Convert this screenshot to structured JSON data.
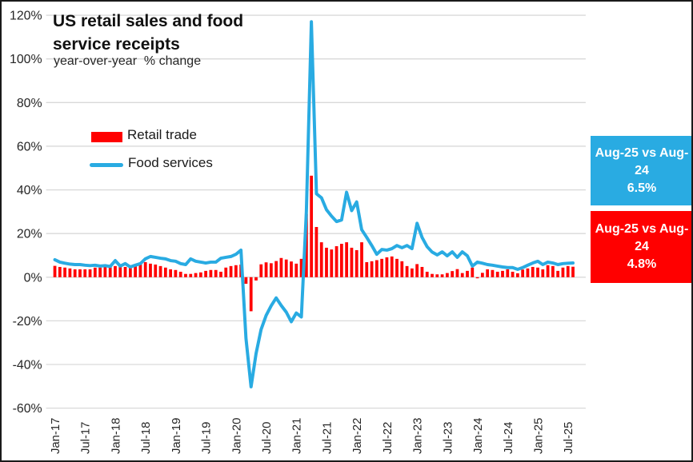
{
  "header": {
    "title_line1": "US retail sales and food",
    "title_line2": "service receipts",
    "subtitle": "year-over-year  % change"
  },
  "legend": {
    "retail_label": "Retail trade",
    "food_label": "Food services"
  },
  "callouts": {
    "food": {
      "line1": "Aug-25 vs Aug-",
      "line2": "24",
      "value": "6.5%"
    },
    "retail": {
      "line1": "Aug-25 vs Aug-",
      "line2": "24",
      "value": "4.8%"
    }
  },
  "colors": {
    "retail": "#FF0000",
    "food": "#29ABE2",
    "gridline": "#D9D9D9",
    "axis_text": "#262626"
  },
  "chart_data": {
    "type": "combo",
    "title": "US retail sales and food service receipts",
    "subtitle": "year-over-year % change",
    "ylim": [
      -60,
      120
    ],
    "y_tick_step": 20,
    "y_tick_labels": [
      "120%",
      "100%",
      "80%",
      "60%",
      "40%",
      "20%",
      "0%",
      "-20%",
      "-40%",
      "-60%"
    ],
    "grid": "horizontal",
    "legend_position": "upper-left-inside",
    "x_tick_labels": [
      "Jan-17",
      "Jul-17",
      "Jan-18",
      "Jul-18",
      "Jan-19",
      "Jul-19",
      "Jan-20",
      "Jul-20",
      "Jan-21",
      "Jul-21",
      "Jan-22",
      "Jul-22",
      "Jan-23",
      "Jul-23",
      "Jan-24",
      "Jul-24",
      "Jan-25",
      "Jul-25"
    ],
    "x": [
      "Jan-17",
      "Feb-17",
      "Mar-17",
      "Apr-17",
      "May-17",
      "Jun-17",
      "Jul-17",
      "Aug-17",
      "Sep-17",
      "Oct-17",
      "Nov-17",
      "Dec-17",
      "Jan-18",
      "Feb-18",
      "Mar-18",
      "Apr-18",
      "May-18",
      "Jun-18",
      "Jul-18",
      "Aug-18",
      "Sep-18",
      "Oct-18",
      "Nov-18",
      "Dec-18",
      "Jan-19",
      "Feb-19",
      "Mar-19",
      "Apr-19",
      "May-19",
      "Jun-19",
      "Jul-19",
      "Aug-19",
      "Sep-19",
      "Oct-19",
      "Nov-19",
      "Dec-19",
      "Jan-20",
      "Feb-20",
      "Mar-20",
      "Apr-20",
      "May-20",
      "Jun-20",
      "Jul-20",
      "Aug-20",
      "Sep-20",
      "Oct-20",
      "Nov-20",
      "Dec-20",
      "Jan-21",
      "Feb-21",
      "Mar-21",
      "Apr-21",
      "May-21",
      "Jun-21",
      "Jul-21",
      "Aug-21",
      "Sep-21",
      "Oct-21",
      "Nov-21",
      "Dec-21",
      "Jan-22",
      "Feb-22",
      "Mar-22",
      "Apr-22",
      "May-22",
      "Jun-22",
      "Jul-22",
      "Aug-22",
      "Sep-22",
      "Oct-22",
      "Nov-22",
      "Dec-22",
      "Jan-23",
      "Feb-23",
      "Mar-23",
      "Apr-23",
      "May-23",
      "Jun-23",
      "Jul-23",
      "Aug-23",
      "Sep-23",
      "Oct-23",
      "Nov-23",
      "Dec-23",
      "Jan-24",
      "Feb-24",
      "Mar-24",
      "Apr-24",
      "May-24",
      "Jun-24",
      "Jul-24",
      "Aug-24",
      "Sep-24",
      "Oct-24",
      "Nov-24",
      "Dec-24",
      "Jan-25",
      "Feb-25",
      "Mar-25",
      "Apr-25",
      "May-25",
      "Jun-25",
      "Jul-25",
      "Aug-25"
    ],
    "series": [
      {
        "name": "Retail trade",
        "type": "bar",
        "color": "#FF0000",
        "values": [
          5.2,
          4.7,
          4.4,
          4.0,
          3.6,
          3.6,
          3.6,
          3.6,
          4.4,
          4.4,
          5.1,
          5.3,
          5.1,
          5.3,
          4.7,
          5.1,
          5.5,
          5.8,
          6.9,
          6.2,
          5.8,
          5.1,
          4.4,
          3.6,
          3.3,
          2.5,
          1.5,
          1.5,
          1.9,
          2.2,
          2.9,
          3.3,
          3.3,
          2.5,
          4.4,
          5.1,
          5.5,
          5.8,
          -3.0,
          -15.6,
          -1.5,
          5.9,
          6.8,
          6.4,
          7.4,
          8.8,
          8.1,
          7.2,
          6.2,
          8.4,
          29.0,
          46.5,
          23.0,
          16.0,
          13.5,
          12.7,
          14.2,
          15.3,
          16.0,
          13.5,
          12.4,
          16.0,
          6.9,
          7.3,
          7.8,
          8.4,
          9.1,
          9.5,
          8.4,
          7.3,
          5.1,
          4.0,
          6.0,
          4.7,
          2.5,
          1.5,
          1.3,
          1.3,
          1.9,
          2.8,
          3.7,
          1.9,
          2.9,
          4.4,
          -0.5,
          2.0,
          3.6,
          3.3,
          2.5,
          2.9,
          3.6,
          2.5,
          1.8,
          3.5,
          4.0,
          4.7,
          4.4,
          3.6,
          5.5,
          5.1,
          2.9,
          4.4,
          5.1,
          4.8
        ]
      },
      {
        "name": "Food services",
        "type": "line",
        "color": "#29ABE2",
        "values": [
          8.0,
          6.9,
          6.4,
          6.0,
          5.8,
          5.8,
          5.5,
          5.3,
          5.5,
          5.1,
          5.3,
          4.9,
          7.6,
          5.1,
          6.2,
          4.7,
          5.5,
          6.2,
          8.4,
          9.5,
          9.1,
          8.7,
          8.4,
          7.6,
          7.3,
          6.2,
          5.8,
          8.4,
          7.3,
          6.9,
          6.5,
          6.9,
          6.9,
          8.7,
          9.1,
          9.5,
          10.5,
          12.4,
          -28.0,
          -50.2,
          -35.0,
          -24.0,
          -17.5,
          -13.1,
          -9.5,
          -13.0,
          -16.0,
          -20.4,
          -16.4,
          -18.2,
          30.0,
          117.0,
          38.2,
          36.4,
          30.9,
          28.0,
          25.5,
          26.2,
          38.9,
          30.5,
          34.5,
          21.8,
          18.2,
          14.5,
          10.5,
          12.7,
          12.4,
          13.1,
          14.5,
          13.5,
          14.5,
          13.1,
          24.7,
          18.2,
          14.0,
          11.5,
          10.2,
          11.6,
          9.8,
          11.6,
          9.1,
          11.6,
          9.8,
          5.1,
          6.9,
          6.4,
          5.8,
          5.5,
          5.1,
          4.7,
          4.4,
          4.4,
          3.6,
          4.4,
          5.5,
          6.5,
          7.3,
          5.8,
          6.9,
          6.5,
          5.8,
          6.2,
          6.4,
          6.5
        ]
      }
    ],
    "callout_food": "Aug-25 vs Aug-24 6.5%",
    "callout_retail": "Aug-25 vs Aug-24 4.8%"
  }
}
